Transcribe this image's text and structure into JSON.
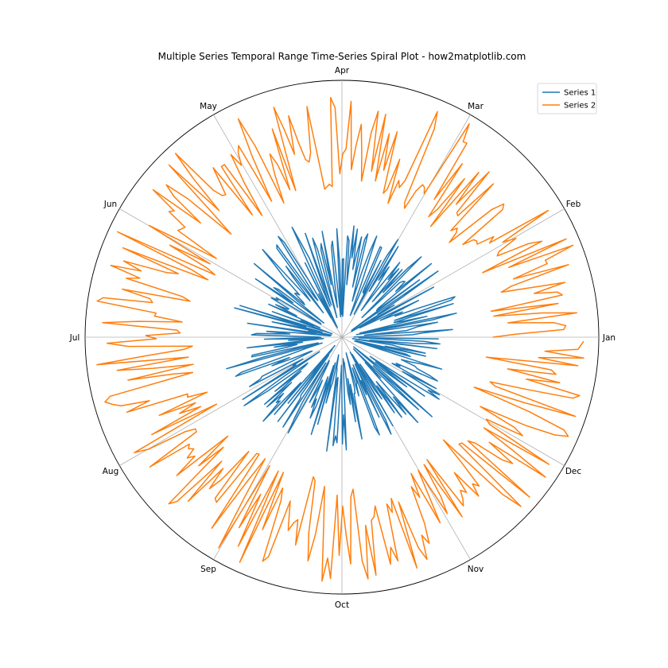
{
  "chart_data": {
    "type": "polar-line",
    "title": "Multiple Series Temporal Range Time-Series Spiral Plot - how2matplotlib.com",
    "theta_labels": [
      "Jan",
      "Feb",
      "Mar",
      "Apr",
      "May",
      "Jun",
      "Jul",
      "Aug",
      "Sep",
      "Oct",
      "Nov",
      "Dec"
    ],
    "theta_direction": "counterclockwise",
    "theta_zero": "east",
    "radial_ticks_visible": false,
    "grid": true,
    "legend_placement": "top-right",
    "n_points": 365,
    "series": [
      {
        "name": "Series 1",
        "color": "#1f77b4",
        "r_min": 0.0,
        "r_max": 0.5,
        "description_of_values": "radius oscillates randomly between about 0.05 and 0.47 of axis radius"
      },
      {
        "name": "Series 2",
        "color": "#ff7f0e",
        "r_min": 0.5,
        "r_max": 0.97,
        "description_of_values": "radius oscillates randomly between about 0.55 and 0.97 of axis radius"
      }
    ]
  }
}
